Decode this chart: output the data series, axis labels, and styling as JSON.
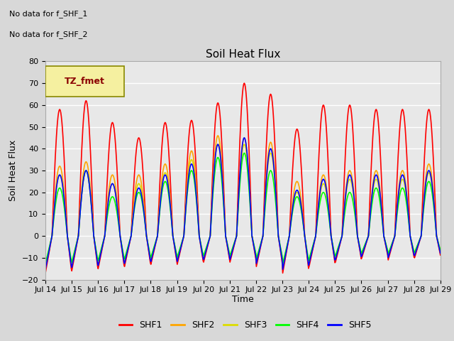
{
  "title": "Soil Heat Flux",
  "ylabel": "Soil Heat Flux",
  "xlabel": "Time",
  "annotations": [
    "No data for f_SHF_1",
    "No data for f_SHF_2"
  ],
  "legend_label": "TZ_fmet",
  "series_labels": [
    "SHF1",
    "SHF2",
    "SHF3",
    "SHF4",
    "SHF5"
  ],
  "series_colors": [
    "red",
    "orange",
    "#DDDD00",
    "lime",
    "blue"
  ],
  "ylim": [
    -20,
    80
  ],
  "yticks": [
    -20,
    -10,
    0,
    10,
    20,
    30,
    40,
    50,
    60,
    70,
    80
  ],
  "xtick_labels": [
    "Jul 14",
    "Jul 15",
    "Jul 16",
    "Jul 17",
    "Jul 18",
    "Jul 19",
    "Jul 20",
    "Jul 21",
    "Jul 22",
    "Jul 23",
    "Jul 24",
    "Jul 25",
    "Jul 26",
    "Jul 27",
    "Jul 28",
    "Jul 29"
  ],
  "bg_color": "#D8D8D8",
  "plot_bg": "#E8E8E8",
  "grid_color": "white",
  "day_peaks_shf1": [
    58,
    62,
    52,
    45,
    52,
    53,
    61,
    70,
    65,
    49,
    60,
    60,
    58,
    58,
    58
  ],
  "day_peaks_shf2": [
    32,
    34,
    28,
    28,
    33,
    39,
    46,
    45,
    43,
    25,
    28,
    30,
    30,
    30,
    33
  ],
  "day_peaks_shf3": [
    28,
    30,
    24,
    24,
    29,
    35,
    42,
    42,
    38,
    20,
    24,
    26,
    26,
    26,
    29
  ],
  "day_peaks_shf4": [
    22,
    30,
    18,
    20,
    25,
    30,
    36,
    38,
    30,
    18,
    20,
    20,
    22,
    22,
    25
  ],
  "day_peaks_shf5": [
    28,
    30,
    24,
    22,
    28,
    33,
    42,
    45,
    40,
    21,
    26,
    28,
    28,
    28,
    30
  ],
  "day_troughs": [
    -17,
    -16,
    -15,
    -14,
    -13,
    -13,
    -12,
    -12,
    -14,
    -17,
    -14,
    -12,
    -10,
    -11,
    -10
  ]
}
